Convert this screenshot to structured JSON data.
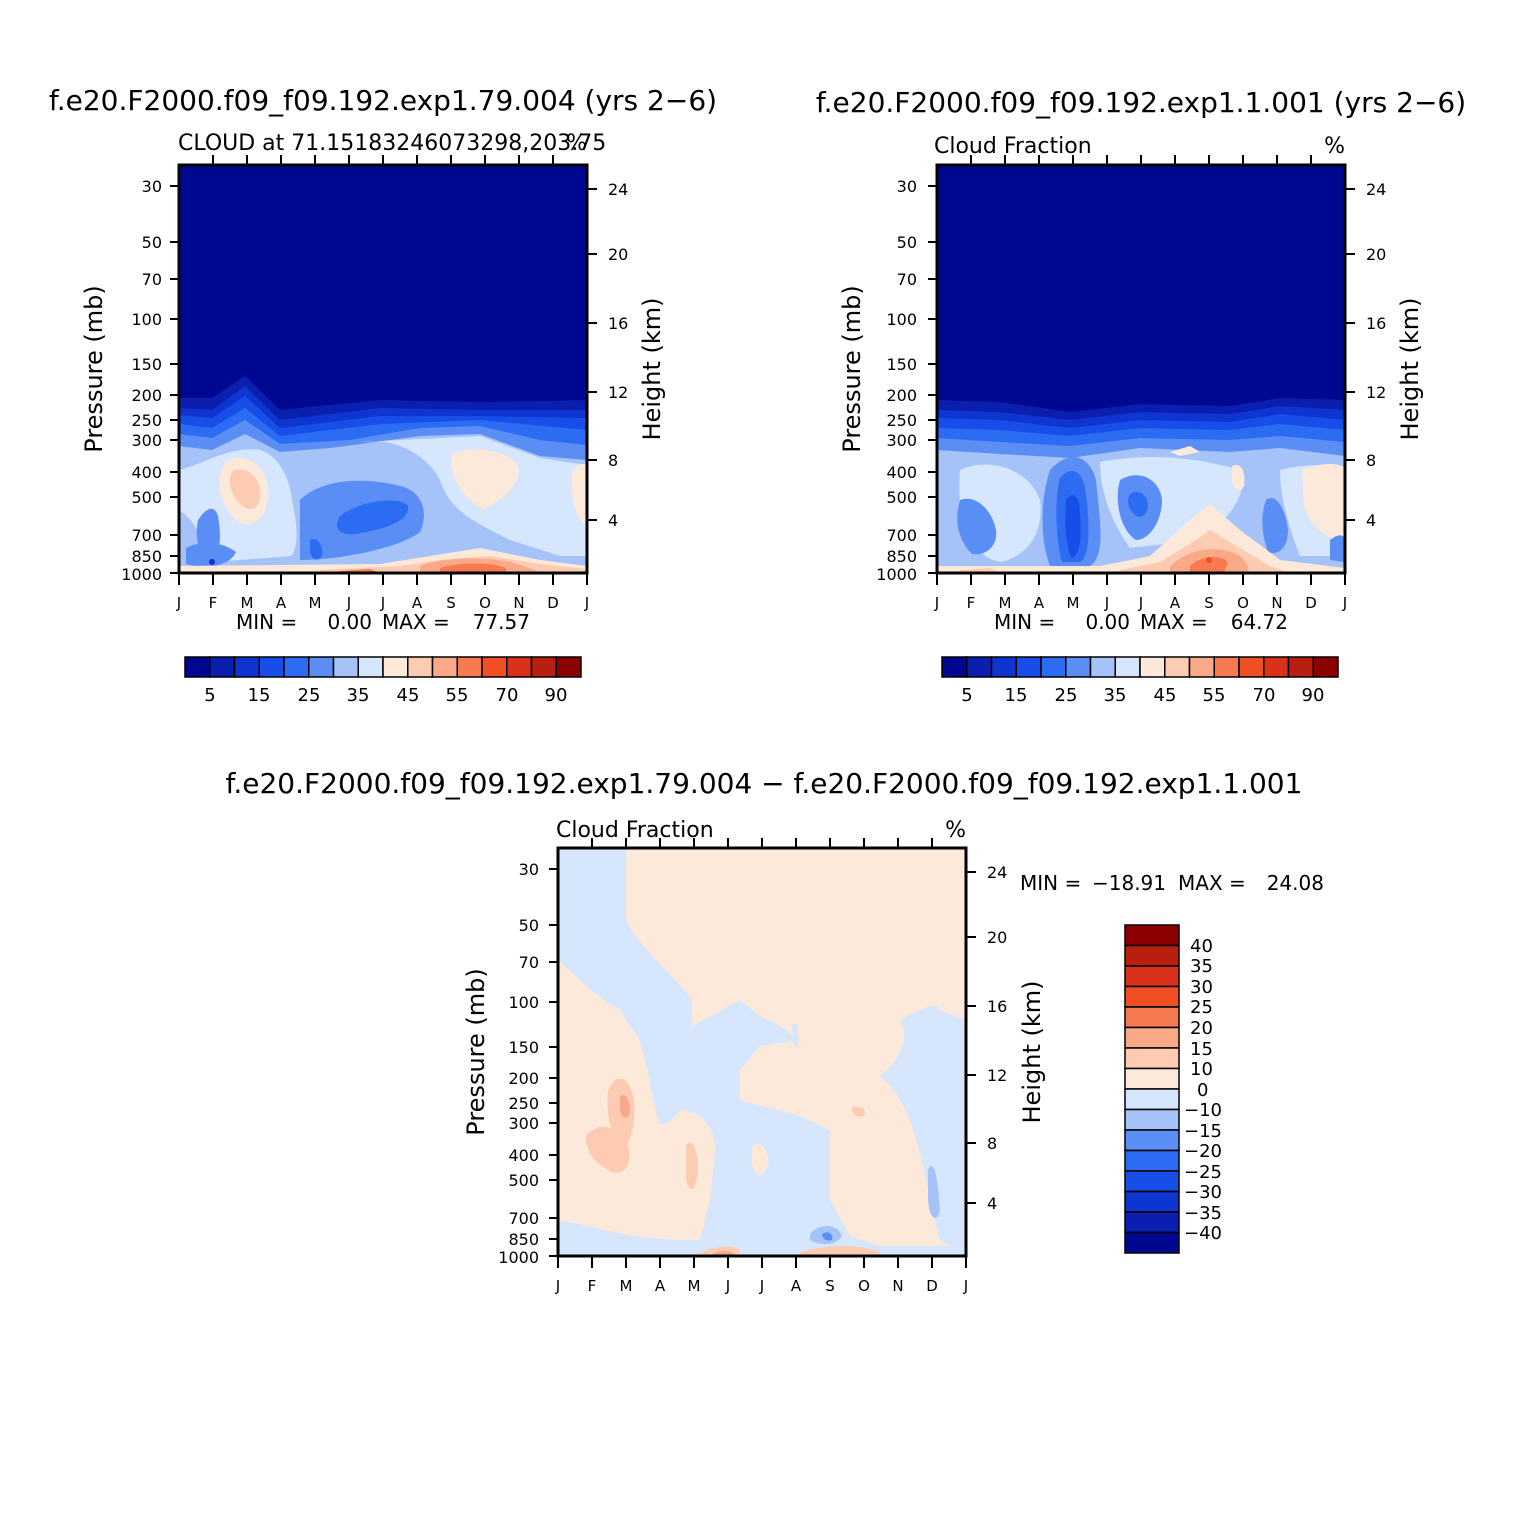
{
  "colors": {
    "levels14": [
      "#000791",
      "#0b1fae",
      "#0e35cf",
      "#174ee8",
      "#2b6cf2",
      "#5a8ef5",
      "#a6c3f9",
      "#d6e7fd",
      "#fde9da",
      "#fccbb2",
      "#f9a988",
      "#f7794f",
      "#f04e23",
      "#d9321a",
      "#b81f10",
      "#8c0000"
    ],
    "diff": [
      "#000791",
      "#0b1fae",
      "#0e35cf",
      "#174ee8",
      "#2b6cf2",
      "#5a8ef5",
      "#a6c3f9",
      "#d6e7fd",
      "#fde9da",
      "#fccbb2",
      "#f9a988",
      "#f7794f",
      "#f04e23",
      "#d9321a",
      "#b81f10",
      "#8c0000"
    ]
  },
  "chart_data": [
    {
      "type": "heatmap",
      "title": "f.e20.F2000.f09_f09.192.exp1.79.004 (yrs 2−6)",
      "subtitle_left": "CLOUD at 71.15183246073298,203.75",
      "subtitle_right": "%",
      "xlabel": "",
      "ylabel": "Pressure (mb)",
      "ylabel_right": "Height (km)",
      "x": [
        "J",
        "F",
        "M",
        "A",
        "M",
        "J",
        "J",
        "A",
        "S",
        "O",
        "N",
        "D",
        "J"
      ],
      "y_pressure_ticks": [
        "30",
        "50",
        "70",
        "100",
        "150",
        "200",
        "250",
        "300",
        "400",
        "500",
        "700",
        "850",
        "1000"
      ],
      "y_height_ticks": [
        "24",
        "20",
        "16",
        "12",
        "8",
        "4"
      ],
      "stats": {
        "min_label": "MIN =",
        "min": "0.00",
        "max_label": "MAX =",
        "max": "77.57"
      },
      "colorbar_ticks": [
        "5",
        "15",
        "25",
        "35",
        "45",
        "55",
        "70",
        "90"
      ]
    },
    {
      "type": "heatmap",
      "title": "f.e20.F2000.f09_f09.192.exp1.1.001 (yrs 2−6)",
      "subtitle_left": "Cloud Fraction",
      "subtitle_right": "%",
      "xlabel": "",
      "ylabel": "Pressure (mb)",
      "ylabel_right": "Height (km)",
      "x": [
        "J",
        "F",
        "M",
        "A",
        "M",
        "J",
        "J",
        "A",
        "S",
        "O",
        "N",
        "D",
        "J"
      ],
      "y_pressure_ticks": [
        "30",
        "50",
        "70",
        "100",
        "150",
        "200",
        "250",
        "300",
        "400",
        "500",
        "700",
        "850",
        "1000"
      ],
      "y_height_ticks": [
        "24",
        "20",
        "16",
        "12",
        "8",
        "4"
      ],
      "stats": {
        "min_label": "MIN =",
        "min": "0.00",
        "max_label": "MAX =",
        "max": "64.72"
      },
      "colorbar_ticks": [
        "5",
        "15",
        "25",
        "35",
        "45",
        "55",
        "70",
        "90"
      ]
    },
    {
      "type": "heatmap",
      "title": "f.e20.F2000.f09_f09.192.exp1.79.004 − f.e20.F2000.f09_f09.192.exp1.1.001",
      "subtitle_left": "Cloud Fraction",
      "subtitle_right": "%",
      "xlabel": "",
      "ylabel": "Pressure (mb)",
      "ylabel_right": "Height (km)",
      "x": [
        "J",
        "F",
        "M",
        "A",
        "M",
        "J",
        "J",
        "A",
        "S",
        "O",
        "N",
        "D",
        "J"
      ],
      "y_pressure_ticks": [
        "30",
        "50",
        "70",
        "100",
        "150",
        "200",
        "250",
        "300",
        "400",
        "500",
        "700",
        "850",
        "1000"
      ],
      "y_height_ticks": [
        "24",
        "20",
        "16",
        "12",
        "8",
        "4"
      ],
      "stats": {
        "min_label": "MIN =",
        "min": "−18.91",
        "max_label": "MAX =",
        "max": "24.08"
      },
      "colorbar_ticks": [
        "40",
        "35",
        "30",
        "25",
        "20",
        "15",
        "10",
        "0",
        "−10",
        "−15",
        "−20",
        "−25",
        "−30",
        "−35",
        "−40"
      ]
    }
  ]
}
